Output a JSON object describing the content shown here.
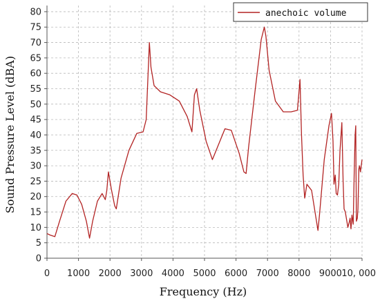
{
  "chart_data": {
    "type": "line",
    "xlabel": "Frequency (Hz)",
    "ylabel": "Sound Pressure Level (dBA)",
    "xlim": [
      0,
      10000
    ],
    "ylim": [
      0,
      82
    ],
    "xticks": [
      0,
      1000,
      2000,
      3000,
      4000,
      5000,
      6000,
      7000,
      8000,
      9000,
      10000
    ],
    "xtick_labels": [
      "0",
      "1000",
      "2000",
      "3000",
      "4000",
      "5000",
      "6000",
      "7000",
      "8000",
      "9000",
      "10, 000"
    ],
    "yticks": [
      0,
      5,
      10,
      15,
      20,
      25,
      30,
      35,
      40,
      45,
      50,
      55,
      60,
      65,
      70,
      75,
      80
    ],
    "grid": true,
    "legend_position": "top-right",
    "colors": {
      "series": "#b22222",
      "grid": "#b8b8b8",
      "axis": "#555555"
    },
    "series": [
      {
        "name": "anechoic volume",
        "x": [
          0,
          100,
          250,
          400,
          600,
          800,
          950,
          1100,
          1250,
          1350,
          1450,
          1600,
          1750,
          1850,
          1900,
          1950,
          2050,
          2150,
          2200,
          2350,
          2600,
          2850,
          3050,
          3150,
          3250,
          3300,
          3400,
          3600,
          3900,
          4200,
          4450,
          4600,
          4680,
          4750,
          4850,
          5050,
          5250,
          5450,
          5650,
          5850,
          6100,
          6250,
          6320,
          6400,
          6600,
          6800,
          6900,
          6950,
          7050,
          7250,
          7500,
          7750,
          7950,
          8030,
          8080,
          8130,
          8180,
          8250,
          8400,
          8600,
          8650,
          8800,
          8950,
          9030,
          9080,
          9110,
          9150,
          9180,
          9220,
          9260,
          9300,
          9360,
          9400,
          9430,
          9470,
          9550,
          9600,
          9620,
          9650,
          9680,
          9720,
          9750,
          9780,
          9800,
          9820,
          9850,
          9870,
          9900,
          9920,
          9950,
          10000
        ],
        "values": [
          8,
          7.5,
          7,
          12,
          18.5,
          21,
          20.5,
          17.5,
          12,
          6.5,
          12,
          18.5,
          21,
          19,
          22,
          28,
          22,
          17,
          16,
          26,
          35,
          40.5,
          41,
          45,
          70,
          62,
          56,
          54,
          53,
          51,
          46,
          41,
          53,
          55,
          48,
          38,
          32,
          37,
          42,
          41.5,
          34,
          28,
          27.5,
          36,
          54,
          71,
          75,
          72,
          61,
          51,
          47.5,
          47.5,
          48,
          58,
          40,
          27,
          19.5,
          24,
          22,
          9,
          14,
          32,
          43,
          47,
          38,
          24,
          27,
          21,
          20.5,
          24,
          35,
          44,
          25,
          16,
          15,
          10,
          12,
          13,
          9.5,
          14,
          11,
          27,
          40,
          43,
          12,
          13,
          16,
          29,
          30,
          28,
          32
        ]
      }
    ]
  }
}
